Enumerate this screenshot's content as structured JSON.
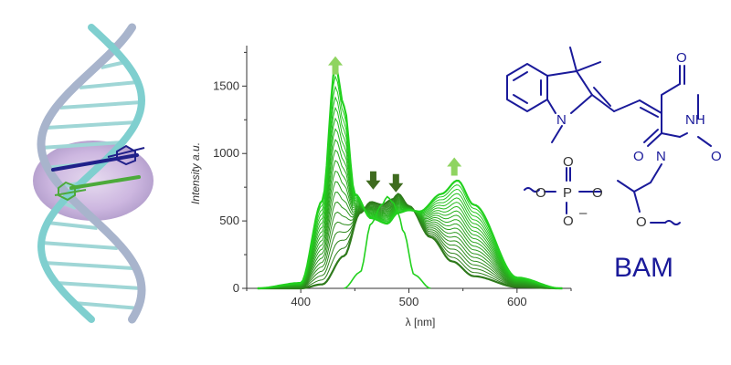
{
  "colors": {
    "helix_strand_a": "#7fcfcf",
    "helix_strand_b": "#a8b4cc",
    "helix_glow": "#c9b3dc",
    "probe_blue": "#20208a",
    "probe_green": "#4caa3a",
    "spectrum_light": "#22d11e",
    "spectrum_dark": "#2f7a1c",
    "arrow_up": "#8fd460",
    "arrow_down": "#3f6b1f",
    "structure": "#1a1a9a",
    "ink": "#333333"
  },
  "chart_data": {
    "type": "line",
    "title": "",
    "xlabel": "λ [nm]",
    "ylabel": "Intensity a.u.",
    "xlim": [
      350,
      650
    ],
    "ylim": [
      0,
      1800
    ],
    "xticks": [
      "400",
      "500",
      "600"
    ],
    "yticks": [
      "0",
      "500",
      "1000",
      "1500"
    ],
    "grid": false,
    "legend": "none",
    "series_count": 20,
    "first_spectrum": {
      "x": [
        360,
        400,
        420,
        440,
        455,
        465,
        475,
        485,
        490,
        500,
        520,
        540,
        560,
        600,
        640
      ],
      "y": [
        0,
        0,
        30,
        240,
        560,
        640,
        620,
        660,
        700,
        610,
        380,
        200,
        90,
        10,
        0
      ]
    },
    "final_spectrum": {
      "x": [
        360,
        400,
        420,
        432,
        440,
        450,
        465,
        480,
        490,
        500,
        510,
        530,
        545,
        560,
        600,
        640
      ],
      "y": [
        0,
        40,
        650,
        1650,
        1350,
        700,
        520,
        480,
        560,
        580,
        570,
        700,
        800,
        620,
        80,
        0
      ]
    },
    "donor_spectrum": {
      "x": [
        440,
        455,
        465,
        475,
        480,
        485,
        490,
        495,
        505,
        520
      ],
      "y": [
        0,
        120,
        480,
        620,
        680,
        640,
        560,
        420,
        100,
        0
      ]
    },
    "annotations": [
      {
        "type": "arrow-up",
        "x": 432,
        "y": 1640
      },
      {
        "type": "arrow-down",
        "x": 467,
        "y": 800
      },
      {
        "type": "arrow-down",
        "x": 488,
        "y": 780
      },
      {
        "type": "arrow-up",
        "x": 542,
        "y": 890
      }
    ]
  },
  "structure": {
    "atoms": {
      "n_indoline": "N",
      "nh": "NH",
      "n_imide": "N",
      "o_top": "O",
      "o_right": "O",
      "o_left": "O",
      "phosphorus": "P",
      "p_o_top": "O",
      "p_o_left": "O",
      "p_o_right": "O",
      "p_o_bottom": "O",
      "chain_o": "O",
      "charge": "–"
    },
    "name": "BAM"
  }
}
